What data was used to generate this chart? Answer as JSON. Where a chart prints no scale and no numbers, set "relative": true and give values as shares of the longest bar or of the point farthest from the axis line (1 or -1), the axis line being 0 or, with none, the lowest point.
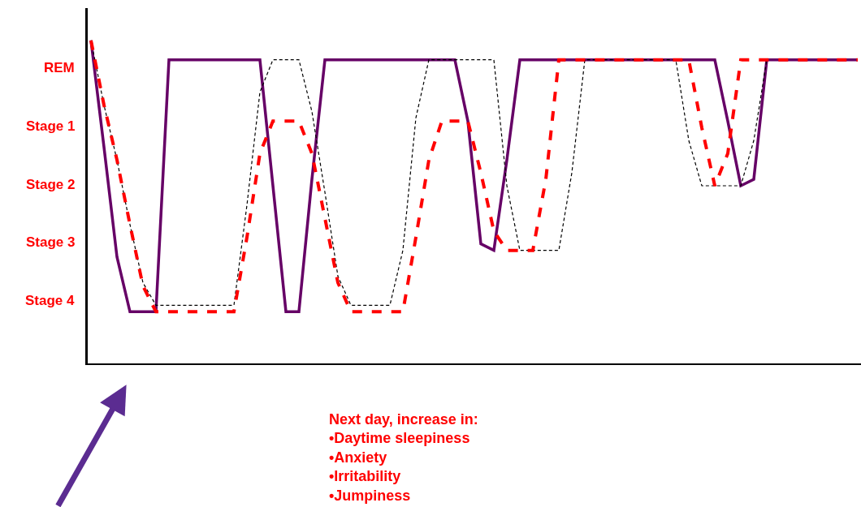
{
  "chart_data": {
    "type": "line",
    "relative": true,
    "categories": [
      null,
      null,
      null,
      null,
      null,
      null,
      null,
      null,
      null,
      null,
      null,
      null,
      null,
      null,
      null,
      null,
      null,
      null,
      null,
      null,
      null,
      null,
      null,
      null,
      null,
      null,
      null,
      null,
      null,
      null,
      null,
      null,
      null,
      null,
      null,
      null,
      null,
      null,
      null,
      null,
      null,
      null,
      null,
      null,
      null,
      null,
      null,
      null,
      null,
      null,
      null,
      null,
      null,
      null,
      null,
      null,
      null,
      null,
      null,
      null
    ],
    "series": [
      {
        "color": "#660066",
        "line_style": "solid",
        "values": [
          1,
          0.67,
          0.33,
          0.16,
          0.16,
          0.16,
          0.94,
          0.94,
          0.94,
          0.94,
          0.94,
          0.94,
          0.94,
          0.94,
          0.55,
          0.16,
          0.16,
          0.57,
          0.94,
          0.94,
          0.94,
          0.94,
          0.94,
          0.94,
          0.94,
          0.94,
          0.94,
          0.94,
          0.94,
          0.75,
          0.37,
          0.35,
          0.63,
          0.94,
          0.94,
          0.94,
          0.94,
          0.94,
          0.94,
          0.94,
          0.94,
          0.94,
          0.94,
          0.94,
          0.94,
          0.94,
          0.94,
          0.94,
          0.94,
          0.75,
          0.55,
          0.57,
          0.94,
          0.94,
          0.94,
          0.94,
          0.94,
          0.94,
          0.94,
          0.94
        ]
      },
      {
        "color": "#ff0000",
        "line_style": "dashed",
        "values": [
          1,
          0.8,
          0.63,
          0.43,
          0.24,
          0.16,
          0.16,
          0.16,
          0.16,
          0.16,
          0.16,
          0.16,
          0.39,
          0.65,
          0.75,
          0.75,
          0.75,
          0.65,
          0.45,
          0.25,
          0.16,
          0.16,
          0.16,
          0.16,
          0.16,
          0.39,
          0.63,
          0.75,
          0.75,
          0.75,
          0.59,
          0.41,
          0.35,
          0.35,
          0.35,
          0.57,
          0.94,
          0.94,
          0.94,
          0.94,
          0.94,
          0.94,
          0.94,
          0.94,
          0.94,
          0.94,
          0.94,
          0.73,
          0.55,
          0.65,
          0.94,
          0.94,
          0.94,
          0.94,
          0.94,
          0.94,
          0.94,
          0.94,
          0.94,
          0.94
        ]
      },
      {
        "color": "#000000",
        "line_style": "dashed",
        "values": [
          1,
          0.8,
          0.63,
          0.43,
          0.25,
          0.18,
          0.18,
          0.18,
          0.18,
          0.18,
          0.18,
          0.18,
          0.49,
          0.84,
          0.94,
          0.94,
          0.94,
          0.78,
          0.53,
          0.27,
          0.18,
          0.18,
          0.18,
          0.18,
          0.35,
          0.76,
          0.94,
          0.94,
          0.94,
          0.94,
          0.94,
          0.94,
          0.55,
          0.35,
          0.35,
          0.35,
          0.35,
          0.59,
          0.94,
          0.94,
          0.94,
          0.94,
          0.94,
          0.94,
          0.94,
          0.94,
          0.69,
          0.55,
          0.55,
          0.55,
          0.55,
          0.69,
          0.94,
          null,
          null,
          null,
          null,
          null,
          null,
          null
        ]
      }
    ],
    "annotations": [
      "REM",
      "Stage 1",
      "Stage 2",
      "Stage 3",
      "Stage 4",
      "Next day, increase in:\n•Daytime sleepiness\n•Anxiety\n•Irritability\n•Jumpiness"
    ]
  }
}
